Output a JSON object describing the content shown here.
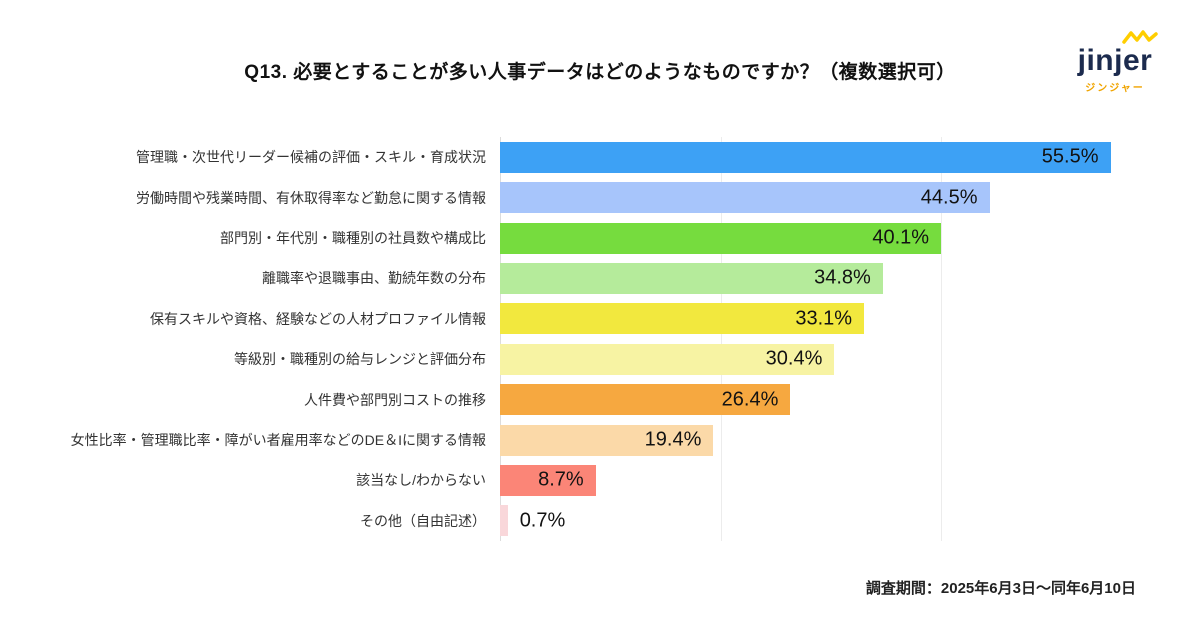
{
  "page": {
    "title": "Q13. 必要とすることが多い人事データはどのようなものですか？（複数選択可）",
    "footer": "調査期間：2025年6月3日〜同年6月10日"
  },
  "logo": {
    "wordmark": "jinjer",
    "subtitle": "ジンジャー",
    "accent_color": "#ffce00",
    "text_color": "#1c2b4e"
  },
  "chart_data": {
    "type": "bar",
    "orientation": "horizontal",
    "title": "Q13. 必要とすることが多い人事データはどのようなものですか？（複数選択可）",
    "xlabel": "",
    "ylabel": "",
    "unit": "%",
    "xlim": [
      0,
      60
    ],
    "gridlines": [
      20,
      40
    ],
    "legend": "none",
    "categories": [
      "管理職・次世代リーダー候補の評価・スキル・育成状況",
      "労働時間や残業時間、有休取得率など勤怠に関する情報",
      "部門別・年代別・職種別の社員数や構成比",
      "離職率や退職事由、勤続年数の分布",
      "保有スキルや資格、経験などの人材プロファイル情報",
      "等級別・職種別の給与レンジと評価分布",
      "人件費や部門別コストの推移",
      "女性比率・管理職比率・障がい者雇用率などのDE＆Iに関する情報",
      "該当なし/わからない",
      "その他（自由記述）"
    ],
    "values": [
      55.5,
      44.5,
      40.1,
      34.8,
      33.1,
      30.4,
      26.4,
      19.4,
      8.7,
      0.7
    ],
    "value_labels": [
      "55.5%",
      "44.5%",
      "40.1%",
      "34.8%",
      "33.1%",
      "30.4%",
      "26.4%",
      "19.4%",
      "8.7%",
      "0.7%"
    ],
    "bar_colors": [
      "#3da1f5",
      "#a7c5fb",
      "#76dc3e",
      "#b5eb9b",
      "#f2e83e",
      "#f7f3a3",
      "#f6a840",
      "#fbd9a8",
      "#fb8577",
      "#f9d7da"
    ]
  }
}
